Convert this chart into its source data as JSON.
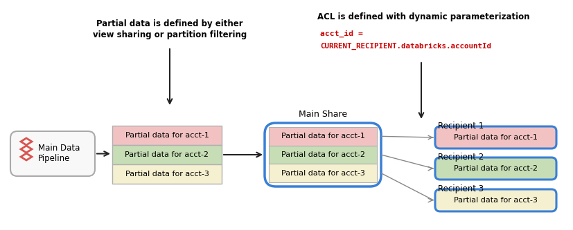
{
  "bg_color": "#ffffff",
  "title_acl": "ACL is defined with dynamic parameterization",
  "title_partial_line1": "Partial data is defined by either",
  "title_partial_line2": "view sharing or partition filtering",
  "code_line1": "acct_id =",
  "code_line2": "CURRENT_RECIPIENT.databricks.accountId",
  "code_color": "#cc0000",
  "main_share_label": "Main Share",
  "pipeline_label": "Main Data\nPipeline",
  "row_labels": [
    "Partial data for acct-1",
    "Partial data for acct-2",
    "Partial data for acct-3"
  ],
  "row_colors": [
    "#f2c2c2",
    "#c6ddb5",
    "#f5f0d0"
  ],
  "recipient_labels": [
    "Recipient 1",
    "Recipient 2",
    "Recipient 3"
  ],
  "recipient_box_color": "#3a7fd5",
  "data_box_border": "#b0b0b0",
  "arrow_color": "#222222",
  "connector_color": "#888888",
  "pipeline_border": "#aaaaaa",
  "icon_color": "#d9534f"
}
